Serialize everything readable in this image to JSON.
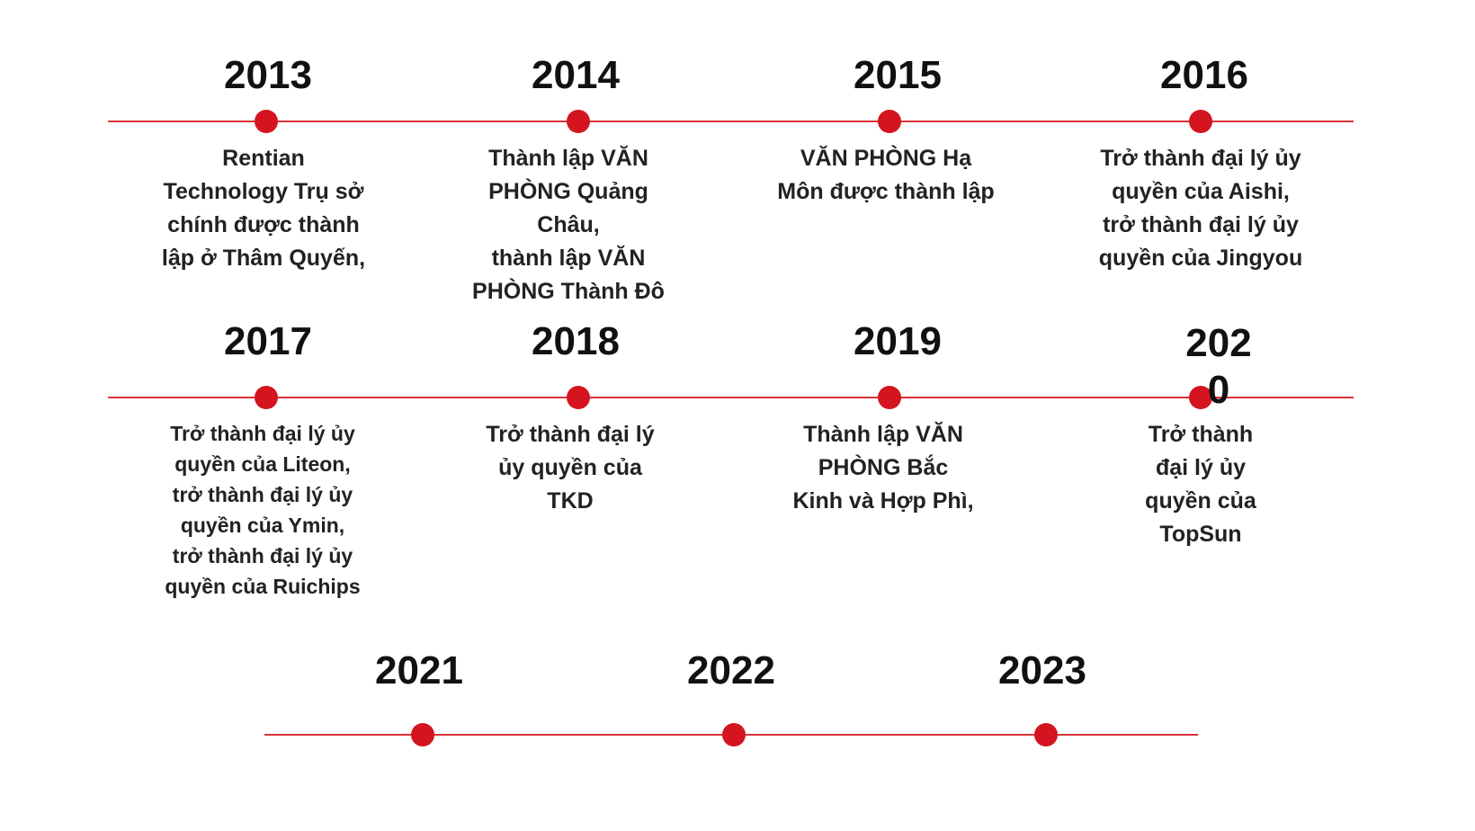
{
  "colors": {
    "line": "#d8343c",
    "dot": "#d4141f"
  },
  "milestones": [
    {
      "year": "2013",
      "text": "Rentian\nTechnology Trụ sở\nchính được thành\nlập ở Thâm Quyến,"
    },
    {
      "year": "2014",
      "text": "Thành lập VĂN\nPHÒNG Quảng\nChâu,\nthành lập VĂN\nPHÒNG Thành Đô"
    },
    {
      "year": "2015",
      "text": "VĂN PHÒNG Hạ\nMôn được thành lập"
    },
    {
      "year": "2016",
      "text": "Trở thành đại lý ủy\nquyền của Aishi,\ntrở thành đại lý ủy\nquyền của Jingyou"
    },
    {
      "year": "2017",
      "text": "Trở thành đại lý ủy\nquyền của Liteon,\ntrở thành đại lý ủy\nquyền của Ymin,\ntrở thành đại lý ủy\nquyền của Ruichips"
    },
    {
      "year": "2018",
      "text": "Trở thành đại lý\nủy quyền của\nTKD"
    },
    {
      "year": "2019",
      "text": "Thành lập VĂN\nPHÒNG Bắc\nKinh và Hợp Phì,"
    },
    {
      "year": "2020",
      "text": "Trở thành\nđại lý ủy\nquyền của\nTopSun"
    },
    {
      "year": "2021",
      "text": ""
    },
    {
      "year": "2022",
      "text": ""
    },
    {
      "year": "2023",
      "text": ""
    }
  ]
}
